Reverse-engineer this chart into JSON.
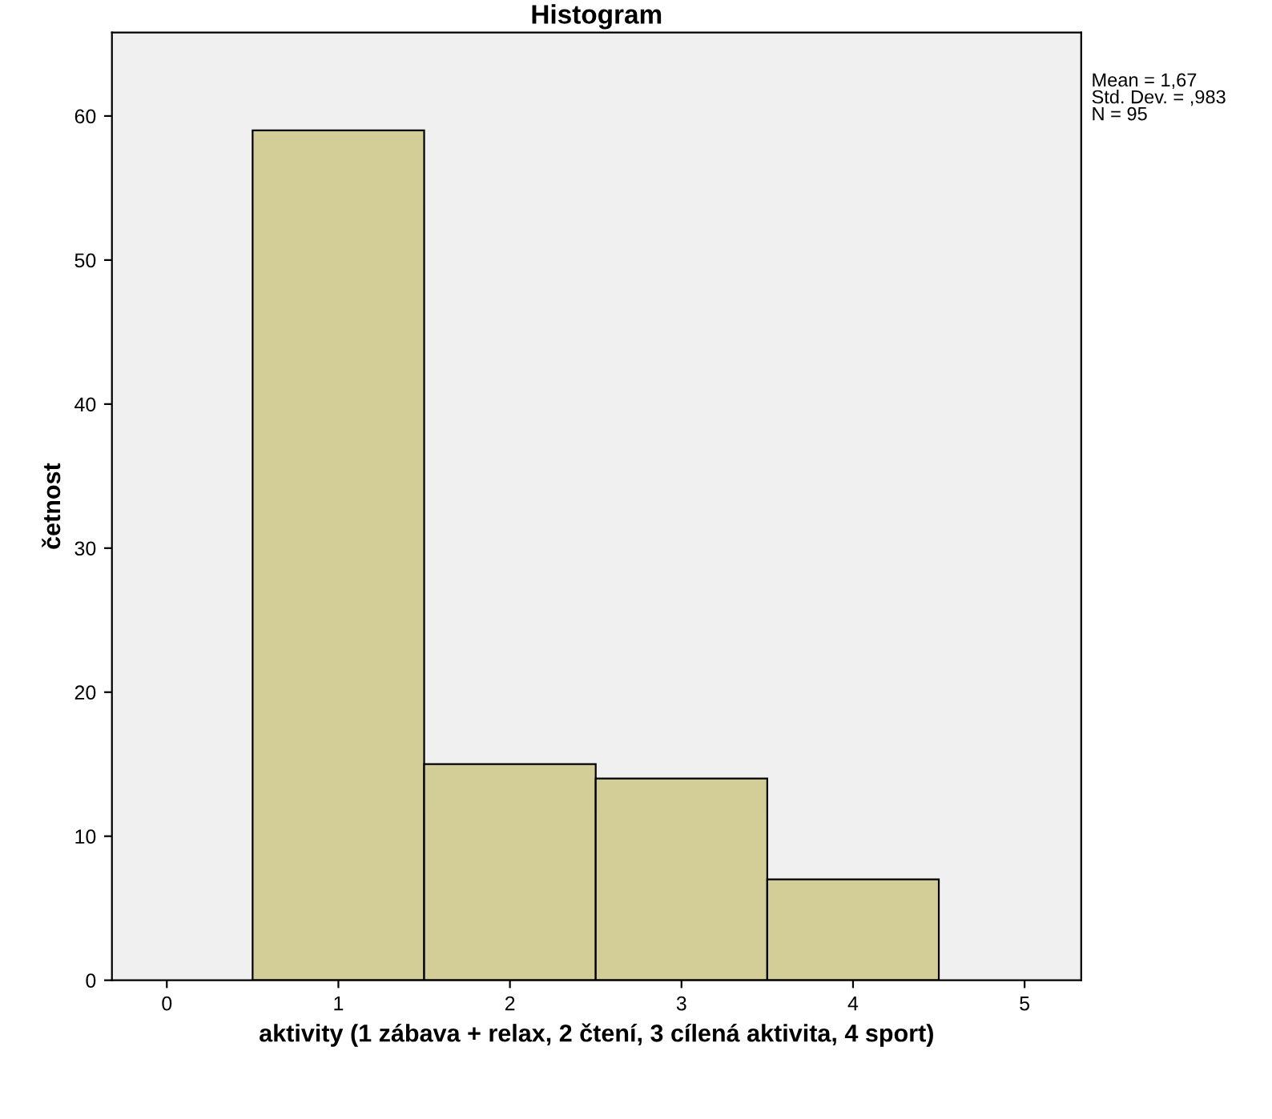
{
  "chart_data": {
    "type": "histogram",
    "title": "Histogram",
    "xlabel": "aktivity (1 zábava + relax, 2 čtení, 3 cílená aktivita, 4 sport)",
    "ylabel": "četnost",
    "bins": [
      0.5,
      1.5,
      2.5,
      3.5,
      4.5
    ],
    "values": [
      59,
      15,
      14,
      7
    ],
    "color": "#d3ce98",
    "xlim": [
      -0.32,
      5.33
    ],
    "ylim": [
      0,
      65.8
    ],
    "xticks": [
      0,
      1,
      2,
      3,
      4,
      5
    ],
    "yticks": [
      0,
      10,
      20,
      30,
      40,
      50,
      60
    ],
    "grid": false,
    "annotations": [
      "Mean = 1,67\nStd. Dev. = ,983\nN = 95"
    ]
  }
}
